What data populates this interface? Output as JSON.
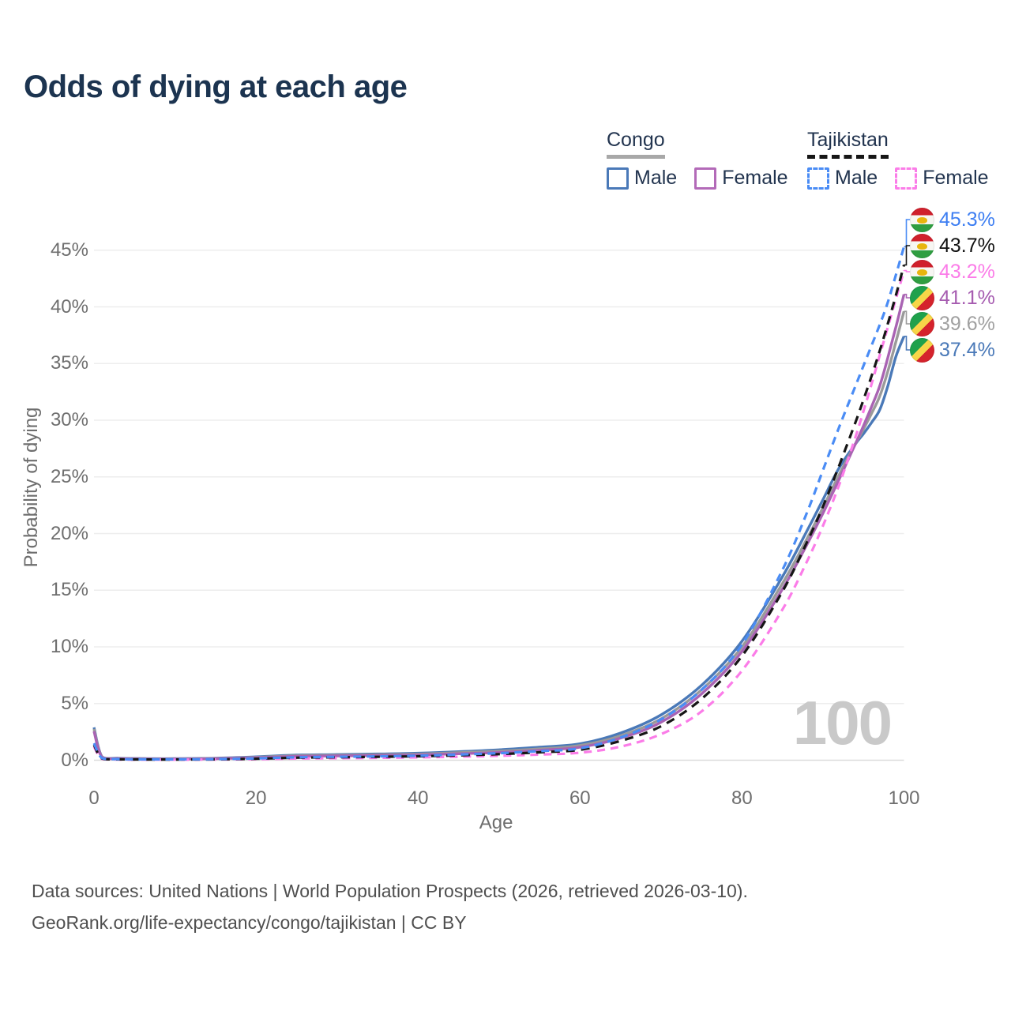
{
  "title": "Odds of dying at each age",
  "legend": {
    "groups": [
      {
        "id": "congo",
        "label": "Congo",
        "line_style": "solid",
        "line_color": "#a8a8a8",
        "items": [
          {
            "label": "Male",
            "swatch_color": "#4a79b8",
            "swatch_style": "solid"
          },
          {
            "label": "Female",
            "swatch_color": "#b36ab8",
            "swatch_style": "solid"
          }
        ]
      },
      {
        "id": "tajikistan",
        "label": "Tajikistan",
        "line_style": "dashed",
        "line_color": "#161616",
        "items": [
          {
            "label": "Male",
            "swatch_color": "#4a8cf5",
            "swatch_style": "dashed"
          },
          {
            "label": "Female",
            "swatch_color": "#fb7ce8",
            "swatch_style": "dashed"
          }
        ]
      }
    ]
  },
  "watermark": "100",
  "axes": {
    "x_title": "Age",
    "y_title": "Probability of dying",
    "x_ticks": [
      0,
      20,
      40,
      60,
      80,
      100
    ],
    "y_ticks": [
      0,
      5,
      10,
      15,
      20,
      25,
      30,
      35,
      40,
      45
    ],
    "y_tick_suffix": "%"
  },
  "footer": {
    "line1": "Data sources: United Nations | World Population Prospects (2026, retrieved 2026-03-10).",
    "line2": "GeoRank.org/life-expectancy/congo/tajikistan | CC BY"
  },
  "chart_data": {
    "type": "line",
    "title": "Odds of dying at each age",
    "xlabel": "Age",
    "ylabel": "Probability of dying",
    "xlim": [
      0,
      100
    ],
    "ylim": [
      0,
      47
    ],
    "grid": "horizontal",
    "legend_position": "top-right",
    "units": "percent probability of dying at each age",
    "series": [
      {
        "name": "Congo Male",
        "country": "Congo",
        "sex": "male",
        "color": "#4a79b8",
        "label_color": "#4a79b8",
        "style": "solid",
        "flag": "cg",
        "end_value": 37.4,
        "end_label": "37.4%",
        "points": [
          [
            0,
            2.9
          ],
          [
            1,
            0.3
          ],
          [
            3,
            0.18
          ],
          [
            5,
            0.15
          ],
          [
            10,
            0.14
          ],
          [
            15,
            0.18
          ],
          [
            20,
            0.3
          ],
          [
            25,
            0.45
          ],
          [
            30,
            0.5
          ],
          [
            35,
            0.55
          ],
          [
            40,
            0.62
          ],
          [
            45,
            0.75
          ],
          [
            50,
            0.92
          ],
          [
            55,
            1.15
          ],
          [
            60,
            1.45
          ],
          [
            65,
            2.4
          ],
          [
            70,
            4.0
          ],
          [
            75,
            6.6
          ],
          [
            80,
            10.5
          ],
          [
            85,
            16.2
          ],
          [
            88,
            20.2
          ],
          [
            90,
            23.0
          ],
          [
            92,
            25.8
          ],
          [
            94,
            27.9
          ],
          [
            95,
            28.8
          ],
          [
            96,
            29.8
          ],
          [
            97,
            30.9
          ],
          [
            98,
            33.0
          ],
          [
            99,
            35.6
          ],
          [
            100,
            37.4
          ]
        ]
      },
      {
        "name": "Congo",
        "country": "Congo",
        "sex": "both",
        "color": "#9a9a9a",
        "label_color": "#a0a0a0",
        "style": "solid",
        "flag": "cg",
        "end_value": 39.6,
        "end_label": "39.6%",
        "points": [
          [
            0,
            2.75
          ],
          [
            1,
            0.28
          ],
          [
            3,
            0.16
          ],
          [
            5,
            0.13
          ],
          [
            10,
            0.12
          ],
          [
            15,
            0.16
          ],
          [
            20,
            0.26
          ],
          [
            25,
            0.4
          ],
          [
            30,
            0.44
          ],
          [
            35,
            0.48
          ],
          [
            40,
            0.54
          ],
          [
            45,
            0.66
          ],
          [
            50,
            0.8
          ],
          [
            55,
            1.0
          ],
          [
            60,
            1.3
          ],
          [
            65,
            2.15
          ],
          [
            70,
            3.65
          ],
          [
            75,
            6.2
          ],
          [
            80,
            10.0
          ],
          [
            85,
            15.6
          ],
          [
            88,
            19.5
          ],
          [
            90,
            22.3
          ],
          [
            92,
            25.2
          ],
          [
            94,
            27.9
          ],
          [
            95,
            29.2
          ],
          [
            96,
            30.6
          ],
          [
            97,
            32.1
          ],
          [
            98,
            34.3
          ],
          [
            99,
            36.9
          ],
          [
            100,
            39.6
          ]
        ]
      },
      {
        "name": "Congo Female",
        "country": "Congo",
        "sex": "female",
        "color": "#a963b3",
        "label_color": "#a65cb0",
        "style": "solid",
        "flag": "cg",
        "end_value": 41.1,
        "end_label": "41.1%",
        "points": [
          [
            0,
            2.55
          ],
          [
            1,
            0.25
          ],
          [
            3,
            0.14
          ],
          [
            5,
            0.12
          ],
          [
            10,
            0.1
          ],
          [
            15,
            0.13
          ],
          [
            20,
            0.22
          ],
          [
            25,
            0.34
          ],
          [
            30,
            0.38
          ],
          [
            35,
            0.42
          ],
          [
            40,
            0.47
          ],
          [
            45,
            0.57
          ],
          [
            50,
            0.68
          ],
          [
            55,
            0.88
          ],
          [
            60,
            1.15
          ],
          [
            65,
            1.95
          ],
          [
            70,
            3.35
          ],
          [
            75,
            5.85
          ],
          [
            80,
            9.6
          ],
          [
            85,
            15.1
          ],
          [
            88,
            19.0
          ],
          [
            90,
            21.8
          ],
          [
            92,
            24.8
          ],
          [
            94,
            27.9
          ],
          [
            95,
            29.5
          ],
          [
            96,
            31.2
          ],
          [
            97,
            33.0
          ],
          [
            98,
            35.5
          ],
          [
            99,
            38.2
          ],
          [
            100,
            41.1
          ]
        ]
      },
      {
        "name": "Tajikistan Female",
        "country": "Tajikistan",
        "sex": "female",
        "color": "#fb7ce8",
        "label_color": "#fb7ce8",
        "style": "dashed",
        "flag": "tj",
        "end_value": 43.2,
        "end_label": "43.2%",
        "points": [
          [
            0,
            1.2
          ],
          [
            1,
            0.12
          ],
          [
            3,
            0.06
          ],
          [
            5,
            0.05
          ],
          [
            10,
            0.05
          ],
          [
            15,
            0.06
          ],
          [
            20,
            0.09
          ],
          [
            25,
            0.15
          ],
          [
            30,
            0.18
          ],
          [
            35,
            0.21
          ],
          [
            40,
            0.25
          ],
          [
            45,
            0.31
          ],
          [
            50,
            0.39
          ],
          [
            55,
            0.5
          ],
          [
            60,
            0.66
          ],
          [
            65,
            1.2
          ],
          [
            70,
            2.3
          ],
          [
            75,
            4.3
          ],
          [
            80,
            7.9
          ],
          [
            85,
            13.3
          ],
          [
            88,
            17.5
          ],
          [
            90,
            20.7
          ],
          [
            92,
            24.3
          ],
          [
            94,
            28.5
          ],
          [
            95,
            30.8
          ],
          [
            96,
            33.2
          ],
          [
            97,
            35.7
          ],
          [
            98,
            38.2
          ],
          [
            99,
            40.7
          ],
          [
            100,
            43.2
          ]
        ]
      },
      {
        "name": "Tajikistan",
        "country": "Tajikistan",
        "sex": "both",
        "color": "#161616",
        "label_color": "#111111",
        "style": "dashed",
        "flag": "tj",
        "end_value": 43.7,
        "end_label": "43.7%",
        "points": [
          [
            0,
            1.35
          ],
          [
            1,
            0.15
          ],
          [
            3,
            0.08
          ],
          [
            5,
            0.07
          ],
          [
            10,
            0.06
          ],
          [
            15,
            0.08
          ],
          [
            20,
            0.13
          ],
          [
            25,
            0.22
          ],
          [
            30,
            0.26
          ],
          [
            35,
            0.3
          ],
          [
            40,
            0.35
          ],
          [
            45,
            0.43
          ],
          [
            50,
            0.54
          ],
          [
            55,
            0.7
          ],
          [
            60,
            0.92
          ],
          [
            65,
            1.7
          ],
          [
            70,
            3.0
          ],
          [
            75,
            5.4
          ],
          [
            80,
            9.2
          ],
          [
            85,
            14.9
          ],
          [
            88,
            19.2
          ],
          [
            90,
            22.4
          ],
          [
            92,
            26.0
          ],
          [
            94,
            29.8
          ],
          [
            95,
            31.8
          ],
          [
            96,
            33.9
          ],
          [
            97,
            36.1
          ],
          [
            98,
            38.5
          ],
          [
            99,
            41.0
          ],
          [
            100,
            43.7
          ]
        ]
      },
      {
        "name": "Tajikistan Male",
        "country": "Tajikistan",
        "sex": "male",
        "color": "#4a8cf5",
        "label_color": "#3d7ef2",
        "style": "dashed",
        "flag": "tj",
        "end_value": 45.3,
        "end_label": "45.3%",
        "points": [
          [
            0,
            1.5
          ],
          [
            1,
            0.18
          ],
          [
            3,
            0.1
          ],
          [
            5,
            0.08
          ],
          [
            10,
            0.08
          ],
          [
            15,
            0.1
          ],
          [
            20,
            0.16
          ],
          [
            25,
            0.26
          ],
          [
            30,
            0.3
          ],
          [
            35,
            0.34
          ],
          [
            40,
            0.4
          ],
          [
            45,
            0.5
          ],
          [
            50,
            0.62
          ],
          [
            55,
            0.8
          ],
          [
            60,
            1.05
          ],
          [
            65,
            2.0
          ],
          [
            70,
            3.6
          ],
          [
            75,
            6.2
          ],
          [
            80,
            10.2
          ],
          [
            85,
            16.8
          ],
          [
            88,
            21.8
          ],
          [
            90,
            25.6
          ],
          [
            92,
            29.4
          ],
          [
            94,
            33.0
          ],
          [
            95,
            34.8
          ],
          [
            96,
            36.6
          ],
          [
            97,
            38.4
          ],
          [
            98,
            40.4
          ],
          [
            99,
            42.8
          ],
          [
            100,
            45.3
          ]
        ]
      }
    ]
  }
}
